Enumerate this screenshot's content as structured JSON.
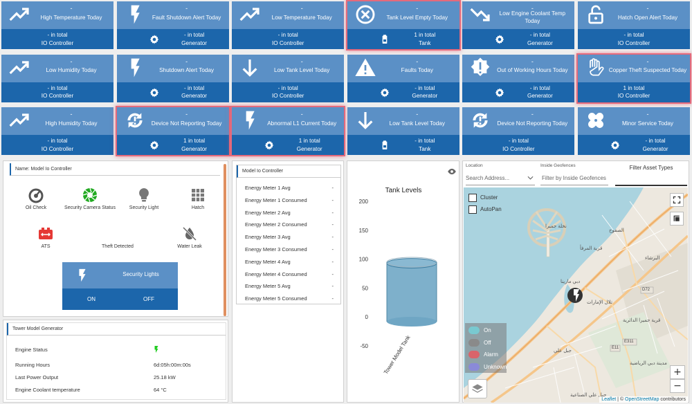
{
  "tiles": [
    {
      "title": "High Temperature Today",
      "dash": "-",
      "count": "- in total",
      "source": "IO Controller",
      "icon": "trending-up-icon",
      "bottom_icon": "",
      "alert": false
    },
    {
      "title": "Fault Shutdown Alert Today",
      "dash": "-",
      "count": "- in total",
      "source": "Generator",
      "icon": "lightning-bolt-icon",
      "bottom_icon": "gear-icon",
      "alert": false
    },
    {
      "title": "Low Temperature Today",
      "dash": "-",
      "count": "- in total",
      "source": "IO Controller",
      "icon": "trending-up-icon",
      "bottom_icon": "",
      "alert": false
    },
    {
      "title": "Tank Level Empty Today",
      "dash": "-",
      "count": "1 in total",
      "source": "Tank",
      "icon": "x-circle-icon",
      "bottom_icon": "fuel-tank-icon",
      "alert": true
    },
    {
      "title": "Low Engine Coolant Temp Today",
      "dash": "-",
      "count": "- in total",
      "source": "Generator",
      "icon": "trending-down-icon",
      "bottom_icon": "gear-icon",
      "alert": false
    },
    {
      "title": "Hatch Open Alert Today",
      "dash": "-",
      "count": "- in total",
      "source": "IO Controller",
      "icon": "padlock-open-icon",
      "bottom_icon": "",
      "alert": false
    },
    {
      "title": "Low Humidity Today",
      "dash": "-",
      "count": "- in total",
      "source": "IO Controller",
      "icon": "trending-up-icon",
      "bottom_icon": "",
      "alert": false
    },
    {
      "title": "Shutdown Alert Today",
      "dash": "-",
      "count": "- in total",
      "source": "Generator",
      "icon": "lightning-bolt-icon",
      "bottom_icon": "gear-icon",
      "alert": false
    },
    {
      "title": "Low Tank Level Today",
      "dash": "-",
      "count": "- in total",
      "source": "IO Controller",
      "icon": "arrow-down-icon",
      "bottom_icon": "",
      "alert": false
    },
    {
      "title": "Faults Today",
      "dash": "-",
      "count": "- in total",
      "source": "Generator",
      "icon": "warning-triangle-icon",
      "bottom_icon": "gear-icon",
      "alert": false
    },
    {
      "title": "Out of Working Hours Today",
      "dash": "-",
      "count": "- in total",
      "source": "Generator",
      "icon": "badge-alert-icon",
      "bottom_icon": "gear-icon",
      "alert": false
    },
    {
      "title": "Copper Theft Suspected Today",
      "dash": "-",
      "count": "1 in total",
      "source": "IO Controller",
      "icon": "stop-hand-icon",
      "bottom_icon": "",
      "alert": true
    },
    {
      "title": "High Humidity Today",
      "dash": "-",
      "count": "- in total",
      "source": "IO Controller",
      "icon": "trending-up-icon",
      "bottom_icon": "",
      "alert": false
    },
    {
      "title": "Device Not Reporting Today",
      "dash": "-",
      "count": "1 in total",
      "source": "Generator",
      "icon": "sync-alert-icon",
      "bottom_icon": "gear-icon",
      "alert": true
    },
    {
      "title": "Abnormal L1 Current Today",
      "dash": "-",
      "count": "1 in total",
      "source": "Generator",
      "icon": "lightning-bolt-icon",
      "bottom_icon": "gear-icon",
      "alert": true
    },
    {
      "title": "Low Tank Level Today",
      "dash": "-",
      "count": "- in total",
      "source": "Tank",
      "icon": "arrow-down-icon",
      "bottom_icon": "fuel-tank-icon",
      "alert": false
    },
    {
      "title": "Device Not Reporting Today",
      "dash": "-",
      "count": "- in total",
      "source": "IO Controller",
      "icon": "sync-alert-icon",
      "bottom_icon": "",
      "alert": false
    },
    {
      "title": "Minor Service Today",
      "dash": "-",
      "count": "- in total",
      "source": "Generator",
      "icon": "bandage-icon",
      "bottom_icon": "gear-icon",
      "alert": false
    }
  ],
  "io_panel": {
    "header": "Name: Model Io Controller",
    "items": [
      {
        "label": "Oil Check",
        "icon": "oil-gauge-icon",
        "color": "#555555"
      },
      {
        "label": "Security Camera Status",
        "icon": "camera-shutter-icon",
        "color": "#22aa22"
      },
      {
        "label": "Security Light",
        "icon": "lightbulb-icon",
        "color": "#777777"
      },
      {
        "label": "Hatch",
        "icon": "grid-icon",
        "color": "#777777"
      },
      {
        "label": "ATS",
        "icon": "ats-switch-icon",
        "color": "#e53935"
      },
      {
        "label": "Theft Detected",
        "icon": "stop-hand-icon",
        "color": "#e53935"
      },
      {
        "label": "Water Leak",
        "icon": "water-off-icon",
        "color": "#666666"
      }
    ],
    "security_lights": {
      "title": "Security Lights",
      "on_label": "ON",
      "off_label": "OFF"
    }
  },
  "generator_panel": {
    "header": "Tower Model Generator",
    "rows": [
      {
        "label": "Engine Status",
        "value": ""
      },
      {
        "label": "Running Hours",
        "value": "6d:05h:00m:00s"
      },
      {
        "label": "Last Power Output",
        "value": "25.18 kW"
      },
      {
        "label": "Engine Coolant temperature",
        "value": "64 °C"
      }
    ]
  },
  "energy_panel": {
    "header": "Model Io Controller",
    "rows": [
      {
        "label": "Energy Meter 1 Avg",
        "value": "-"
      },
      {
        "label": "Energy Meter 1 Consumed",
        "value": "-"
      },
      {
        "label": "Energy Meter 2 Avg",
        "value": "-"
      },
      {
        "label": "Energy Meter 2 Consumed",
        "value": "-"
      },
      {
        "label": "Energy Meter 3 Avg",
        "value": "-"
      },
      {
        "label": "Energy Meter 3 Consumed",
        "value": "-"
      },
      {
        "label": "Energy Meter 4 Avg",
        "value": "-"
      },
      {
        "label": "Energy Meter 4 Consumed",
        "value": "-"
      },
      {
        "label": "Energy Meter 5 Avg",
        "value": "-"
      },
      {
        "label": "Energy Meter 5 Consumed",
        "value": "-"
      }
    ]
  },
  "chart_data": {
    "type": "bar",
    "title": "Tank Levels",
    "categories": [
      "Tower Model Tank"
    ],
    "values": [
      100
    ],
    "yticks": [
      200,
      150,
      100,
      50,
      0,
      -50
    ],
    "ylim": [
      -50,
      200
    ],
    "xlabel": "",
    "ylabel": "",
    "grid": false
  },
  "map_panel": {
    "location_label": "Location",
    "location_placeholder": "Search Address...",
    "geofence_label": "Inside Geofences",
    "geofence_placeholder": "Filter by Inside Geofences",
    "filter_tab": "Filter Asset Types",
    "cluster_label": "Cluster",
    "autopan_label": "AutoPan",
    "legend": [
      {
        "label": "On",
        "color": "#79c9d0"
      },
      {
        "label": "Off",
        "color": "#8a8a8a"
      },
      {
        "label": "Alarm",
        "color": "#d9646b"
      },
      {
        "label": "Unknown",
        "color": "#8a8ad8"
      }
    ],
    "attribution_leaflet": "Leaflet",
    "attribution_sep": " | © ",
    "attribution_osm": "OpenStreetMap",
    "attribution_tail": " contributors",
    "zoom_in": "+",
    "zoom_out": "−",
    "labels": {
      "palm": "نخلة جميرا",
      "marina": "دبي مارينا",
      "sufouh": "الصفوح",
      "mourja": "قرية المرفأ",
      "barsha": "البرشاء",
      "emirates_hills": "تلال الإمارات",
      "jumeirah_village": "قرية جميرا الدائرية",
      "sports_city": "مدينة دبي الرياضية",
      "jebel_ali": "جبل علي",
      "jebel_ali_industrial": "جبل علي الصناعية",
      "d72": "D72",
      "e311": "E311",
      "e11": "E11"
    }
  }
}
